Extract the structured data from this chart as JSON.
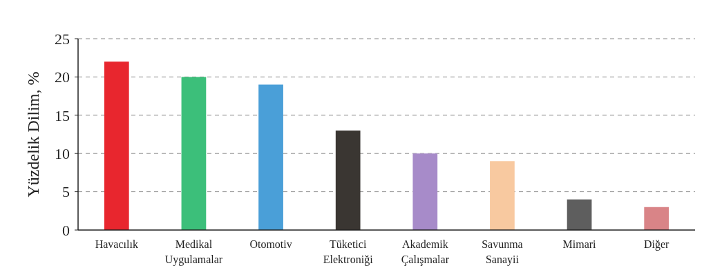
{
  "chart_data": {
    "type": "bar",
    "ylabel": "Yüzdelik Dilim, %",
    "categories": [
      "Havacılık",
      "Medikal Uygulamalar",
      "Otomotiv",
      "Tüketici Elektroniği",
      "Akademik Çalışmalar",
      "Savunma Sanayii",
      "Mimari",
      "Diğer"
    ],
    "values": [
      22,
      20,
      19,
      13,
      10,
      9,
      4,
      3
    ],
    "colors": [
      "#e8262e",
      "#3cbf7a",
      "#4a9fd8",
      "#3a3632",
      "#a78bc9",
      "#f8c9a0",
      "#5e5e5e",
      "#d98487"
    ],
    "ylim": [
      0,
      25
    ],
    "yticks": [
      0,
      5,
      10,
      15,
      20,
      25
    ],
    "grid": "y"
  }
}
